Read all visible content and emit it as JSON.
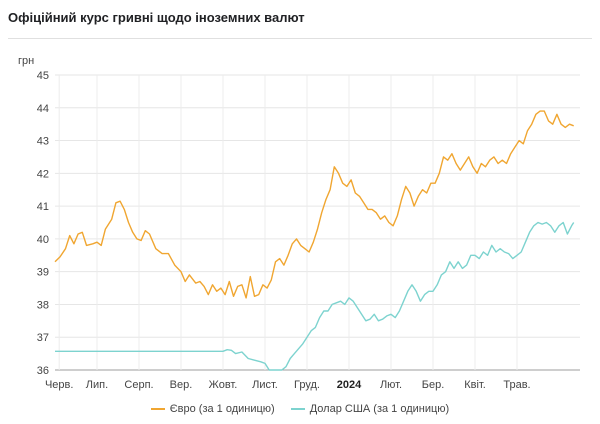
{
  "title": "Офіційний курс гривні щодо іноземних валют",
  "chart_data": {
    "type": "line",
    "ylabel": "грн",
    "ylim": [
      36,
      45
    ],
    "yticks": [
      36,
      37,
      38,
      39,
      40,
      41,
      42,
      43,
      44,
      45
    ],
    "grid": true,
    "legend_position": "bottom",
    "x_range": [
      0,
      12.5
    ],
    "x_ticks": [
      {
        "label": "Черв.",
        "x": 0.1,
        "bold": false
      },
      {
        "label": "Лип.",
        "x": 1.0,
        "bold": false
      },
      {
        "label": "Серп.",
        "x": 2.0,
        "bold": false
      },
      {
        "label": "Вер.",
        "x": 3.0,
        "bold": false
      },
      {
        "label": "Жовт.",
        "x": 4.0,
        "bold": false
      },
      {
        "label": "Лист.",
        "x": 5.0,
        "bold": false
      },
      {
        "label": "Груд.",
        "x": 6.0,
        "bold": false
      },
      {
        "label": "2024",
        "x": 7.0,
        "bold": true
      },
      {
        "label": "Лют.",
        "x": 8.0,
        "bold": false
      },
      {
        "label": "Бер.",
        "x": 9.0,
        "bold": false
      },
      {
        "label": "Квіт.",
        "x": 10.0,
        "bold": false
      },
      {
        "label": "Трав.",
        "x": 11.0,
        "bold": false
      }
    ],
    "series": [
      {
        "name": "Євро (за 1 одиницю)",
        "color": "#f0a631",
        "points": [
          [
            0,
            39.3
          ],
          [
            0.12,
            39.45
          ],
          [
            0.25,
            39.7
          ],
          [
            0.35,
            40.1
          ],
          [
            0.45,
            39.85
          ],
          [
            0.55,
            40.15
          ],
          [
            0.65,
            40.2
          ],
          [
            0.75,
            39.8
          ],
          [
            0.9,
            39.85
          ],
          [
            1.0,
            39.9
          ],
          [
            1.1,
            39.8
          ],
          [
            1.2,
            40.3
          ],
          [
            1.35,
            40.6
          ],
          [
            1.45,
            41.1
          ],
          [
            1.55,
            41.15
          ],
          [
            1.65,
            40.9
          ],
          [
            1.75,
            40.5
          ],
          [
            1.85,
            40.2
          ],
          [
            1.95,
            40.0
          ],
          [
            2.05,
            39.95
          ],
          [
            2.15,
            40.25
          ],
          [
            2.25,
            40.15
          ],
          [
            2.4,
            39.7
          ],
          [
            2.55,
            39.55
          ],
          [
            2.7,
            39.55
          ],
          [
            2.85,
            39.2
          ],
          [
            3.0,
            39.0
          ],
          [
            3.1,
            38.7
          ],
          [
            3.2,
            38.9
          ],
          [
            3.35,
            38.65
          ],
          [
            3.45,
            38.7
          ],
          [
            3.55,
            38.55
          ],
          [
            3.65,
            38.3
          ],
          [
            3.75,
            38.6
          ],
          [
            3.85,
            38.4
          ],
          [
            3.95,
            38.5
          ],
          [
            4.05,
            38.3
          ],
          [
            4.15,
            38.7
          ],
          [
            4.25,
            38.25
          ],
          [
            4.35,
            38.55
          ],
          [
            4.45,
            38.6
          ],
          [
            4.55,
            38.2
          ],
          [
            4.65,
            38.85
          ],
          [
            4.75,
            38.25
          ],
          [
            4.85,
            38.3
          ],
          [
            4.95,
            38.6
          ],
          [
            5.05,
            38.5
          ],
          [
            5.15,
            38.75
          ],
          [
            5.25,
            39.3
          ],
          [
            5.35,
            39.4
          ],
          [
            5.45,
            39.2
          ],
          [
            5.55,
            39.5
          ],
          [
            5.65,
            39.85
          ],
          [
            5.75,
            40.0
          ],
          [
            5.85,
            39.8
          ],
          [
            5.95,
            39.7
          ],
          [
            6.05,
            39.6
          ],
          [
            6.15,
            39.9
          ],
          [
            6.25,
            40.3
          ],
          [
            6.35,
            40.8
          ],
          [
            6.45,
            41.2
          ],
          [
            6.55,
            41.5
          ],
          [
            6.65,
            42.2
          ],
          [
            6.75,
            42.0
          ],
          [
            6.85,
            41.7
          ],
          [
            6.95,
            41.6
          ],
          [
            7.05,
            41.8
          ],
          [
            7.15,
            41.4
          ],
          [
            7.25,
            41.3
          ],
          [
            7.35,
            41.1
          ],
          [
            7.45,
            40.9
          ],
          [
            7.55,
            40.9
          ],
          [
            7.65,
            40.8
          ],
          [
            7.75,
            40.6
          ],
          [
            7.85,
            40.7
          ],
          [
            7.95,
            40.5
          ],
          [
            8.05,
            40.4
          ],
          [
            8.15,
            40.7
          ],
          [
            8.25,
            41.2
          ],
          [
            8.35,
            41.6
          ],
          [
            8.45,
            41.4
          ],
          [
            8.55,
            41.0
          ],
          [
            8.65,
            41.3
          ],
          [
            8.75,
            41.5
          ],
          [
            8.85,
            41.4
          ],
          [
            8.95,
            41.7
          ],
          [
            9.05,
            41.7
          ],
          [
            9.15,
            42.0
          ],
          [
            9.25,
            42.5
          ],
          [
            9.35,
            42.4
          ],
          [
            9.45,
            42.6
          ],
          [
            9.55,
            42.3
          ],
          [
            9.65,
            42.1
          ],
          [
            9.75,
            42.3
          ],
          [
            9.85,
            42.5
          ],
          [
            9.95,
            42.2
          ],
          [
            10.05,
            42.0
          ],
          [
            10.15,
            42.3
          ],
          [
            10.25,
            42.2
          ],
          [
            10.35,
            42.4
          ],
          [
            10.45,
            42.5
          ],
          [
            10.55,
            42.3
          ],
          [
            10.65,
            42.4
          ],
          [
            10.75,
            42.3
          ],
          [
            10.85,
            42.6
          ],
          [
            10.95,
            42.8
          ],
          [
            11.05,
            43.0
          ],
          [
            11.15,
            42.9
          ],
          [
            11.25,
            43.3
          ],
          [
            11.35,
            43.5
          ],
          [
            11.45,
            43.8
          ],
          [
            11.55,
            43.9
          ],
          [
            11.65,
            43.9
          ],
          [
            11.75,
            43.6
          ],
          [
            11.85,
            43.5
          ],
          [
            11.95,
            43.8
          ],
          [
            12.05,
            43.5
          ],
          [
            12.15,
            43.4
          ],
          [
            12.25,
            43.5
          ],
          [
            12.35,
            43.45
          ]
        ]
      },
      {
        "name": "Долар США (за 1 одиницю)",
        "color": "#7dd3cf",
        "points": [
          [
            0,
            36.57
          ],
          [
            4.0,
            36.57
          ],
          [
            4.1,
            36.62
          ],
          [
            4.2,
            36.6
          ],
          [
            4.3,
            36.5
          ],
          [
            4.45,
            36.55
          ],
          [
            4.6,
            36.35
          ],
          [
            4.75,
            36.3
          ],
          [
            4.9,
            36.25
          ],
          [
            5.0,
            36.2
          ],
          [
            5.1,
            36.0
          ],
          [
            5.25,
            36.0
          ],
          [
            5.4,
            36.0
          ],
          [
            5.5,
            36.1
          ],
          [
            5.6,
            36.35
          ],
          [
            5.7,
            36.5
          ],
          [
            5.8,
            36.65
          ],
          [
            5.9,
            36.8
          ],
          [
            6.0,
            37.0
          ],
          [
            6.1,
            37.2
          ],
          [
            6.2,
            37.3
          ],
          [
            6.3,
            37.6
          ],
          [
            6.4,
            37.8
          ],
          [
            6.5,
            37.8
          ],
          [
            6.6,
            38.0
          ],
          [
            6.7,
            38.05
          ],
          [
            6.8,
            38.1
          ],
          [
            6.9,
            38.0
          ],
          [
            7.0,
            38.2
          ],
          [
            7.1,
            38.1
          ],
          [
            7.2,
            37.9
          ],
          [
            7.3,
            37.7
          ],
          [
            7.4,
            37.5
          ],
          [
            7.5,
            37.55
          ],
          [
            7.6,
            37.7
          ],
          [
            7.7,
            37.5
          ],
          [
            7.8,
            37.55
          ],
          [
            7.9,
            37.65
          ],
          [
            8.0,
            37.7
          ],
          [
            8.1,
            37.6
          ],
          [
            8.2,
            37.8
          ],
          [
            8.3,
            38.1
          ],
          [
            8.4,
            38.4
          ],
          [
            8.5,
            38.6
          ],
          [
            8.6,
            38.4
          ],
          [
            8.7,
            38.1
          ],
          [
            8.8,
            38.3
          ],
          [
            8.9,
            38.4
          ],
          [
            9.0,
            38.4
          ],
          [
            9.1,
            38.6
          ],
          [
            9.2,
            38.9
          ],
          [
            9.3,
            39.0
          ],
          [
            9.4,
            39.3
          ],
          [
            9.5,
            39.1
          ],
          [
            9.6,
            39.3
          ],
          [
            9.7,
            39.1
          ],
          [
            9.8,
            39.2
          ],
          [
            9.9,
            39.5
          ],
          [
            10.0,
            39.5
          ],
          [
            10.1,
            39.4
          ],
          [
            10.2,
            39.6
          ],
          [
            10.3,
            39.5
          ],
          [
            10.4,
            39.8
          ],
          [
            10.5,
            39.6
          ],
          [
            10.6,
            39.7
          ],
          [
            10.7,
            39.6
          ],
          [
            10.8,
            39.55
          ],
          [
            10.9,
            39.4
          ],
          [
            11.0,
            39.5
          ],
          [
            11.1,
            39.6
          ],
          [
            11.2,
            39.9
          ],
          [
            11.3,
            40.2
          ],
          [
            11.4,
            40.4
          ],
          [
            11.5,
            40.5
          ],
          [
            11.6,
            40.45
          ],
          [
            11.7,
            40.5
          ],
          [
            11.8,
            40.4
          ],
          [
            11.9,
            40.2
          ],
          [
            12.0,
            40.4
          ],
          [
            12.1,
            40.5
          ],
          [
            12.2,
            40.15
          ],
          [
            12.3,
            40.4
          ],
          [
            12.35,
            40.5
          ]
        ]
      }
    ]
  }
}
